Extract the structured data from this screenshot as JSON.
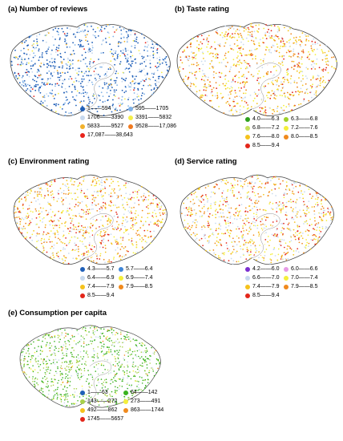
{
  "panels": [
    {
      "title": "(a) Number of reviews",
      "palette": "blue",
      "legend": [
        {
          "label": "1——594",
          "color": "#1f5fb8"
        },
        {
          "label": "595——1705",
          "color": "#7fb2e8"
        },
        {
          "label": "1706——3390",
          "color": "#c7d9ee"
        },
        {
          "label": "3391——5832",
          "color": "#f3ef4a"
        },
        {
          "label": "5833——9527",
          "color": "#f2b12a"
        },
        {
          "label": "9528——17,086",
          "color": "#f07a20"
        },
        {
          "label": "17,087——38,643",
          "color": "#e8231b"
        }
      ]
    },
    {
      "title": "(b) Taste rating",
      "palette": "warm",
      "legend": [
        {
          "label": "4.0——6.3",
          "color": "#2fa11d"
        },
        {
          "label": "6.3——6.8",
          "color": "#9fd12a"
        },
        {
          "label": "6.8——7.2",
          "color": "#c6df5c"
        },
        {
          "label": "7.2——7.6",
          "color": "#f4ef3c"
        },
        {
          "label": "7.6——8.0",
          "color": "#f5c21c"
        },
        {
          "label": "8.0——8.5",
          "color": "#f08a1d"
        },
        {
          "label": "8.5——9.4",
          "color": "#e3261a"
        }
      ]
    },
    {
      "title": "(c) Environment rating",
      "palette": "warm",
      "legend": [
        {
          "label": "4.3——5.7",
          "color": "#1f5fb8"
        },
        {
          "label": "5.7——6.4",
          "color": "#3f86d8"
        },
        {
          "label": "6.4——6.9",
          "color": "#c7d9ee"
        },
        {
          "label": "6.9——7.4",
          "color": "#f4ef3c"
        },
        {
          "label": "7.4——7.9",
          "color": "#f5c21c"
        },
        {
          "label": "7.9——8.5",
          "color": "#f08a1d"
        },
        {
          "label": "8.5——9.4",
          "color": "#e3261a"
        }
      ]
    },
    {
      "title": "(d) Service rating",
      "palette": "warm",
      "legend": [
        {
          "label": "4.2——6.0",
          "color": "#7b2fd0"
        },
        {
          "label": "6.0——6.6",
          "color": "#e69ae6"
        },
        {
          "label": "6.6——7.0",
          "color": "#c7d9ee"
        },
        {
          "label": "7.0——7.4",
          "color": "#f4ef3c"
        },
        {
          "label": "7.4——7.9",
          "color": "#f5c21c"
        },
        {
          "label": "7.9——8.5",
          "color": "#f08a1d"
        },
        {
          "label": "8.5——9.4",
          "color": "#e3261a"
        }
      ]
    },
    {
      "title": "(e) Consumption per capita",
      "palette": "green",
      "legend": [
        {
          "label": "1——63",
          "color": "#1f5fb8"
        },
        {
          "label": "64——142",
          "color": "#39b21e"
        },
        {
          "label": "143——272",
          "color": "#a8d14a"
        },
        {
          "label": "273——491",
          "color": "#f4ef3c"
        },
        {
          "label": "492——862",
          "color": "#f5c21c"
        },
        {
          "label": "863——1744",
          "color": "#f08a1d"
        },
        {
          "label": "1745——5657",
          "color": "#e3261a"
        }
      ]
    }
  ]
}
